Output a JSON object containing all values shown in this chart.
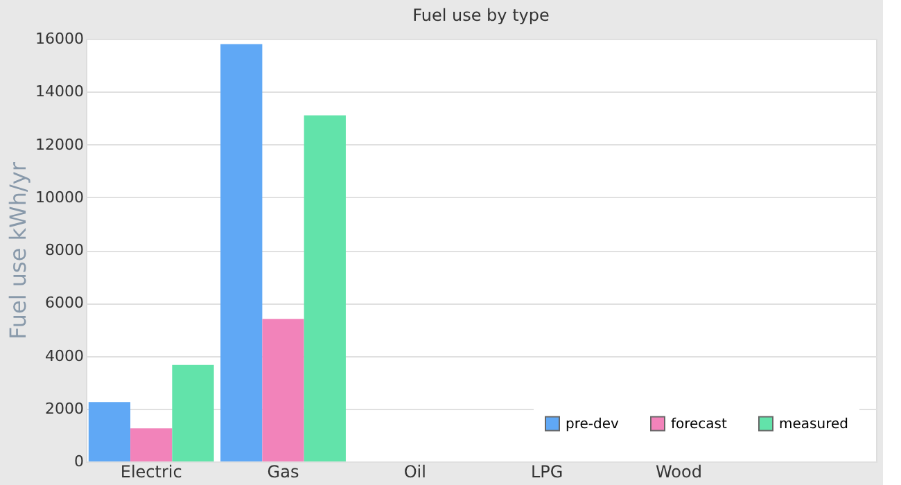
{
  "chart_data": {
    "type": "bar",
    "title": "Fuel use by type",
    "ylabel": "Fuel use  kWh/yr",
    "categories": [
      "Electric",
      "Gas",
      "Oil",
      "LPG",
      "Wood",
      null
    ],
    "series": [
      {
        "name": "pre-dev",
        "color": "#60a8f5",
        "values": [
          2250,
          15800,
          null,
          null,
          null,
          null
        ]
      },
      {
        "name": "forecast",
        "color": "#f283ba",
        "values": [
          1250,
          5400,
          null,
          null,
          null,
          null
        ]
      },
      {
        "name": "measured",
        "color": "#62e3aa",
        "values": [
          3650,
          13100,
          null,
          null,
          null,
          null
        ]
      }
    ],
    "ylim": [
      0,
      16000
    ],
    "yticks": [
      0,
      2000,
      4000,
      6000,
      8000,
      10000,
      12000,
      14000,
      16000
    ],
    "grid": "y",
    "legend": "bottom right"
  }
}
